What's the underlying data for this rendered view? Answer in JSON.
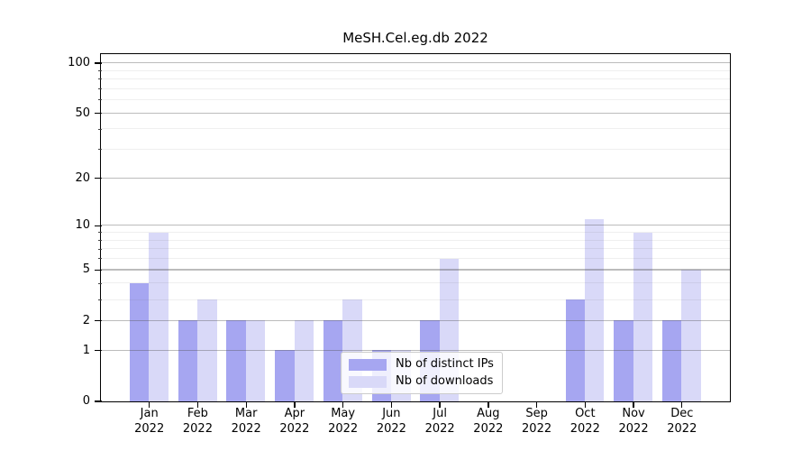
{
  "figure": {
    "title": "MeSH.Cel.eg.db 2022"
  },
  "chart_data": {
    "type": "bar",
    "title": "MeSH.Cel.eg.db 2022",
    "categories": [
      "Jan",
      "Feb",
      "Mar",
      "Apr",
      "May",
      "Jun",
      "Jul",
      "Aug",
      "Sep",
      "Oct",
      "Nov",
      "Dec"
    ],
    "category_year": "2022",
    "series": [
      {
        "name": "Nb of distinct IPs",
        "color": "#a6a6f1",
        "values": [
          4,
          2,
          2,
          1,
          2,
          1,
          2,
          0,
          0,
          3,
          2,
          2
        ]
      },
      {
        "name": "Nb of downloads",
        "color": "#d9d9f8",
        "values": [
          9,
          3,
          2,
          2,
          3,
          1,
          6,
          0,
          0,
          11,
          9,
          5
        ]
      }
    ],
    "xlabel": "",
    "ylabel": "",
    "y_scale": "log1p",
    "y_ticks": [
      0,
      1,
      2,
      5,
      10,
      20,
      50,
      100
    ],
    "y_minor_ticks": [
      3,
      4,
      6,
      7,
      8,
      9,
      30,
      40,
      60,
      70,
      80,
      90
    ],
    "ylim": [
      0,
      113.2
    ],
    "grid": "horizontal-major-and-minor",
    "legend_position": "lower center"
  }
}
